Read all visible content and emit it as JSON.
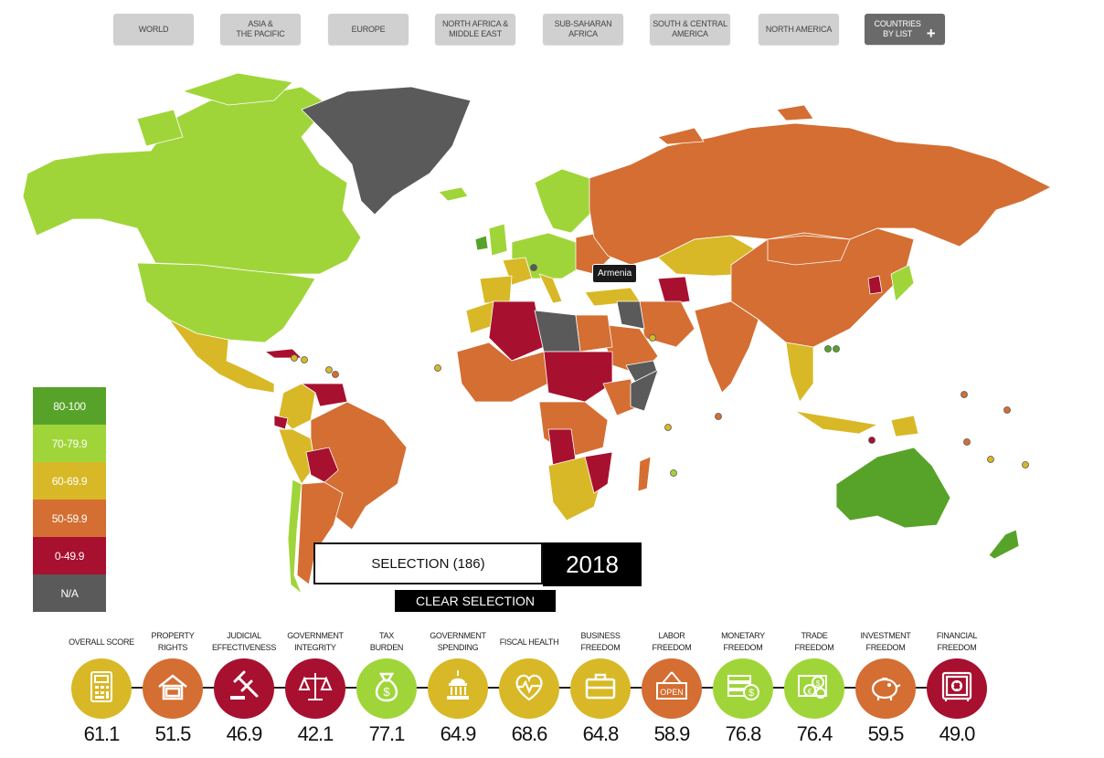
{
  "tabs": [
    {
      "label": "WORLD"
    },
    {
      "label": "ASIA &\nTHE PACIFIC"
    },
    {
      "label": "EUROPE"
    },
    {
      "label": "NORTH AFRICA &\nMIDDLE EAST"
    },
    {
      "label": "SUB-SAHARAN\nAFRICA"
    },
    {
      "label": "SOUTH & CENTRAL\nAMERICA"
    },
    {
      "label": "NORTH AMERICA"
    },
    {
      "label": "COUNTRIES\nBY LIST",
      "icon": "plus-icon"
    }
  ],
  "tooltip": "Armenia",
  "legend": [
    {
      "label": "80-100",
      "color": "#57a329"
    },
    {
      "label": "70-79.9",
      "color": "#a0d53a"
    },
    {
      "label": "60-69.9",
      "color": "#d8b826"
    },
    {
      "label": "50-59.9",
      "color": "#d46e32"
    },
    {
      "label": "0-49.9",
      "color": "#a8102f"
    },
    {
      "label": "N/A",
      "color": "#5a5a5a"
    }
  ],
  "selection": {
    "label": "SELECTION (186)",
    "year": "2018",
    "clear": "CLEAR SELECTION"
  },
  "indicators": [
    {
      "label": "OVERALL SCORE",
      "value": "61.1",
      "color": "#d8b826",
      "icon": "calculator-icon"
    },
    {
      "label": "PROPERTY\nRIGHTS",
      "value": "51.5",
      "color": "#d46e32",
      "icon": "house-icon"
    },
    {
      "label": "JUDICIAL\nEFFECTIVENESS",
      "value": "46.9",
      "color": "#a8102f",
      "icon": "gavel-icon"
    },
    {
      "label": "GOVERNMENT\nINTEGRITY",
      "value": "42.1",
      "color": "#a8102f",
      "icon": "scales-icon"
    },
    {
      "label": "TAX\nBURDEN",
      "value": "77.1",
      "color": "#a0d53a",
      "icon": "money-bag-icon"
    },
    {
      "label": "GOVERNMENT\nSPENDING",
      "value": "64.9",
      "color": "#d8b826",
      "icon": "capitol-icon"
    },
    {
      "label": "FISCAL HEALTH",
      "value": "68.6",
      "color": "#d8b826",
      "icon": "heart-dollar-icon"
    },
    {
      "label": "BUSINESS\nFREEDOM",
      "value": "64.8",
      "color": "#d8b826",
      "icon": "briefcase-icon"
    },
    {
      "label": "LABOR\nFREEDOM",
      "value": "58.9",
      "color": "#d46e32",
      "icon": "open-sign-icon"
    },
    {
      "label": "MONETARY\nFREEDOM",
      "value": "76.8",
      "color": "#a0d53a",
      "icon": "cash-coin-icon"
    },
    {
      "label": "TRADE\nFREEDOM",
      "value": "76.4",
      "color": "#a0d53a",
      "icon": "currency-exchange-icon"
    },
    {
      "label": "INVESTMENT\nFREEDOM",
      "value": "59.5",
      "color": "#d46e32",
      "icon": "piggy-bank-icon"
    },
    {
      "label": "FINANCIAL\nFREEDOM",
      "value": "49.0",
      "color": "#a8102f",
      "icon": "safe-icon"
    }
  ]
}
